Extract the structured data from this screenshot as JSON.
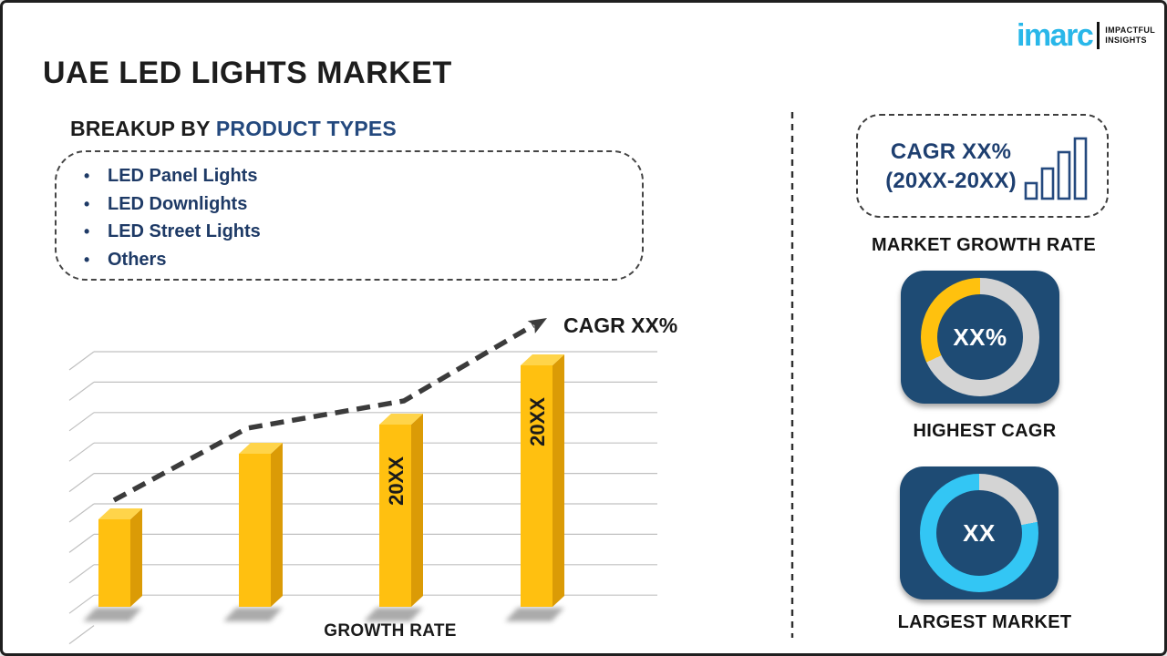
{
  "header": {
    "title": "UAE LED LIGHTS MARKET"
  },
  "logo": {
    "brand": "imarc",
    "tagline": [
      "IMPACTFUL",
      "INSIGHTS"
    ],
    "brand_color": "#29b7e9"
  },
  "breakup": {
    "heading_prefix": "BREAKUP BY ",
    "heading_highlight": "PRODUCT TYPES",
    "items": [
      "LED Panel Lights",
      "LED Downlights",
      "LED Street Lights",
      "Others"
    ]
  },
  "chart_data": {
    "type": "bar",
    "title": "",
    "xlabel": "GROWTH RATE",
    "ylabel": "",
    "categories": [
      "",
      "",
      "20XX",
      "20XX"
    ],
    "values": [
      96,
      168,
      200,
      265
    ],
    "values_note": "relative bar heights, no numeric axis shown",
    "bar_labels": [
      "",
      "",
      "20XX",
      "20XX"
    ],
    "bar_color": "#ffc010",
    "bar_color_side": "#db9b06",
    "bar_color_top": "#ffd44a",
    "grid": true,
    "gridline_count": 9,
    "trend": {
      "label": "CAGR XX%",
      "style": "dashed-arrow",
      "color": "#3b3b3b",
      "direction": "up"
    }
  },
  "right_panel": {
    "cagr_box": {
      "line1": "CAGR XX%",
      "line2": "(20XX-20XX)"
    },
    "market_growth_label": "MARKET GROWTH RATE",
    "highest_cagr": {
      "value": "XX%",
      "label": "HIGHEST CAGR",
      "highlight_percent": 32,
      "highlight_color": "#ffc10e",
      "ring_color": "#d4d4d4",
      "card_color": "#1e4b74"
    },
    "largest_market": {
      "value": "XX",
      "label": "LARGEST MARKET",
      "highlight_percent": 78,
      "highlight_color": "#33c6f4",
      "ring_color": "#d4d4d4",
      "card_color": "#1e4b74"
    }
  }
}
